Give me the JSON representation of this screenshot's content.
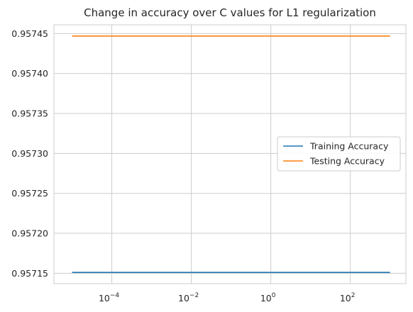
{
  "chart_data": {
    "type": "line",
    "title": "Change in accuracy over C values for L1 regularization",
    "xlabel": "",
    "ylabel": "",
    "xscale": "log",
    "xlim": [
      3.5e-06,
      2500
    ],
    "ylim": [
      0.957137,
      0.957461
    ],
    "grid": true,
    "legend_position": "center-right",
    "x_ticks": [
      {
        "value": 0.0001,
        "base": "10",
        "exp": "−4"
      },
      {
        "value": 0.01,
        "base": "10",
        "exp": "−2"
      },
      {
        "value": 1,
        "base": "10",
        "exp": "0"
      },
      {
        "value": 100,
        "base": "10",
        "exp": "2"
      }
    ],
    "y_ticks": [
      {
        "value": 0.95715,
        "label": "0.95715"
      },
      {
        "value": 0.9572,
        "label": "0.95720"
      },
      {
        "value": 0.95725,
        "label": "0.95725"
      },
      {
        "value": 0.9573,
        "label": "0.95730"
      },
      {
        "value": 0.95735,
        "label": "0.95735"
      },
      {
        "value": 0.9574,
        "label": "0.95740"
      },
      {
        "value": 0.95745,
        "label": "0.95745"
      }
    ],
    "x": [
      1e-05,
      0.0001,
      0.001,
      0.01,
      0.1,
      1,
      10,
      100,
      1000
    ],
    "series": [
      {
        "name": "Training Accuracy",
        "color": "#1f77b4",
        "values": [
          0.957151,
          0.957151,
          0.957151,
          0.957151,
          0.957151,
          0.957151,
          0.957151,
          0.957151,
          0.957151
        ]
      },
      {
        "name": "Testing Accuracy",
        "color": "#ff7f0e",
        "values": [
          0.957447,
          0.957447,
          0.957447,
          0.957447,
          0.957447,
          0.957447,
          0.957447,
          0.957447,
          0.957447
        ]
      }
    ]
  }
}
